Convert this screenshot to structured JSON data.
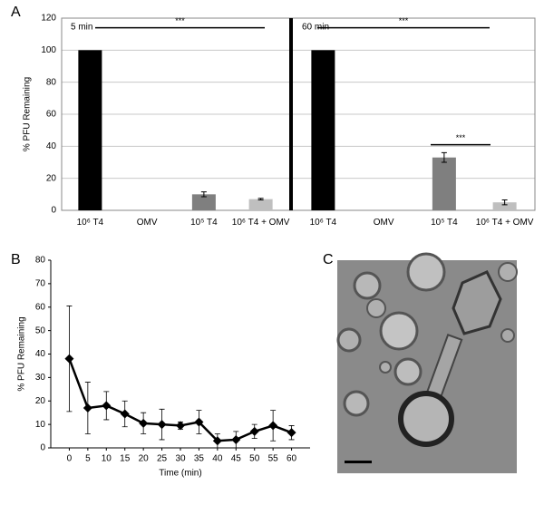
{
  "chart_data": [
    {
      "type": "bar",
      "panel_label": "A",
      "ylabel": "% PFU Remaining",
      "categories": [
        "10⁶ T4",
        "OMV",
        "10⁵ T4",
        "10⁶ T4 + OMV"
      ],
      "colors": [
        "#000000",
        "#a0a0a0",
        "#7f7f7f",
        "#bfbfbf"
      ],
      "series": [
        {
          "name": "5 min",
          "values": [
            100,
            0,
            10,
            7
          ],
          "errors": [
            0,
            0,
            1.5,
            0.5
          ]
        },
        {
          "name": "60 min",
          "values": [
            100,
            0,
            33,
            5
          ],
          "errors": [
            0,
            0,
            3,
            1.5
          ]
        }
      ],
      "annotations": [
        "***",
        "***",
        "***"
      ],
      "ylim": [
        0,
        120
      ],
      "yticks": [
        0,
        20,
        40,
        60,
        80,
        100,
        120
      ],
      "grid": true
    },
    {
      "type": "line",
      "panel_label": "B",
      "ylabel": "% PFU Remaining",
      "xlabel": "Time (min)",
      "x": [
        0,
        5,
        10,
        15,
        20,
        25,
        30,
        35,
        40,
        45,
        50,
        55,
        60
      ],
      "values": [
        38,
        17,
        18,
        14.5,
        10.5,
        10,
        9.5,
        11,
        3,
        3.5,
        7,
        9.5,
        6.5
      ],
      "errors": [
        22.5,
        11,
        6,
        5.5,
        4.5,
        6.5,
        1.5,
        5,
        3,
        3.5,
        3,
        6.5,
        3
      ],
      "color": "#000000",
      "xlim": [
        -5,
        65
      ],
      "xticks": [
        0,
        5,
        10,
        15,
        20,
        25,
        30,
        35,
        40,
        45,
        50,
        55,
        60
      ],
      "ylim": [
        0,
        80
      ],
      "yticks": [
        0,
        10,
        20,
        30,
        40,
        50,
        60,
        70,
        80
      ],
      "grid": false
    }
  ],
  "image_panel": {
    "label": "C"
  }
}
